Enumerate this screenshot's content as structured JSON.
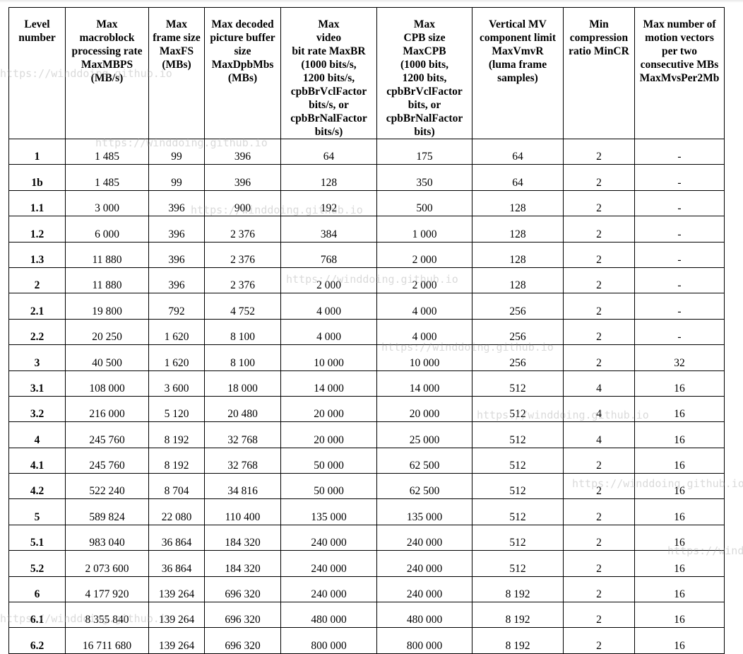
{
  "headers": [
    "Level number",
    "Max macroblock processing rate MaxMBPS (MB/s)",
    "Max frame size MaxFS (MBs)",
    "Max decoded picture buffer size MaxDpbMbs (MBs)",
    "Max video bit rate MaxBR (1000 bits/s, 1200 bits/s, cpbBrVclFactor bits/s, or cpbBrNalFactor bits/s)",
    "Max CPB size MaxCPB (1000 bits, 1200 bits, cpbBrVclFactor bits, or cpbBrNalFactor bits)",
    "Vertical MV component limit MaxVmvR (luma frame samples)",
    "Min compression ratio MinCR",
    "Max number of motion vectors per two consecutive MBs MaxMvsPer2Mb"
  ],
  "rows": [
    [
      "1",
      "1 485",
      "99",
      "396",
      "64",
      "175",
      "64",
      "2",
      "-"
    ],
    [
      "1b",
      "1 485",
      "99",
      "396",
      "128",
      "350",
      "64",
      "2",
      "-"
    ],
    [
      "1.1",
      "3 000",
      "396",
      "900",
      "192",
      "500",
      "128",
      "2",
      "-"
    ],
    [
      "1.2",
      "6 000",
      "396",
      "2 376",
      "384",
      "1 000",
      "128",
      "2",
      "-"
    ],
    [
      "1.3",
      "11 880",
      "396",
      "2 376",
      "768",
      "2 000",
      "128",
      "2",
      "-"
    ],
    [
      "2",
      "11 880",
      "396",
      "2 376",
      "2 000",
      "2 000",
      "128",
      "2",
      "-"
    ],
    [
      "2.1",
      "19 800",
      "792",
      "4 752",
      "4 000",
      "4 000",
      "256",
      "2",
      "-"
    ],
    [
      "2.2",
      "20 250",
      "1 620",
      "8 100",
      "4 000",
      "4 000",
      "256",
      "2",
      "-"
    ],
    [
      "3",
      "40 500",
      "1 620",
      "8 100",
      "10 000",
      "10 000",
      "256",
      "2",
      "32"
    ],
    [
      "3.1",
      "108 000",
      "3 600",
      "18 000",
      "14 000",
      "14 000",
      "512",
      "4",
      "16"
    ],
    [
      "3.2",
      "216 000",
      "5 120",
      "20 480",
      "20 000",
      "20 000",
      "512",
      "4",
      "16"
    ],
    [
      "4",
      "245 760",
      "8 192",
      "32 768",
      "20 000",
      "25 000",
      "512",
      "4",
      "16"
    ],
    [
      "4.1",
      "245 760",
      "8 192",
      "32 768",
      "50 000",
      "62 500",
      "512",
      "2",
      "16"
    ],
    [
      "4.2",
      "522 240",
      "8 704",
      "34 816",
      "50 000",
      "62 500",
      "512",
      "2",
      "16"
    ],
    [
      "5",
      "589 824",
      "22 080",
      "110 400",
      "135 000",
      "135 000",
      "512",
      "2",
      "16"
    ],
    [
      "5.1",
      "983 040",
      "36 864",
      "184 320",
      "240 000",
      "240 000",
      "512",
      "2",
      "16"
    ],
    [
      "5.2",
      "2 073 600",
      "36 864",
      "184 320",
      "240 000",
      "240 000",
      "512",
      "2",
      "16"
    ],
    [
      "6",
      "4 177 920",
      "139 264",
      "696 320",
      "240 000",
      "240 000",
      "8 192",
      "2",
      "16"
    ],
    [
      "6.1",
      "8 355 840",
      "139 264",
      "696 320",
      "480 000",
      "480 000",
      "8 192",
      "2",
      "16"
    ],
    [
      "6.2",
      "16 711 680",
      "139 264",
      "696 320",
      "800 000",
      "800 000",
      "8 192",
      "2",
      "16"
    ]
  ],
  "watermark": "https://winddoing.github.io"
}
